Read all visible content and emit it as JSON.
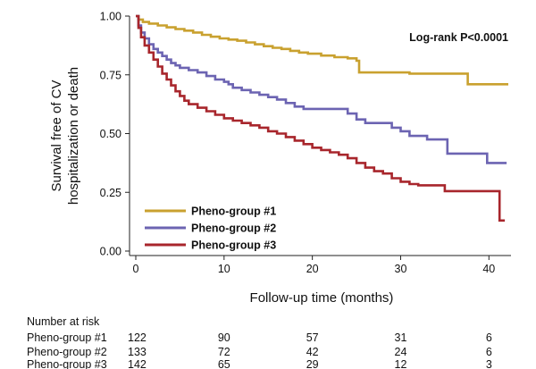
{
  "chart_data": {
    "type": "line",
    "subtype": "kaplan-meier step curves",
    "xlabel": "Follow-up time (months)",
    "ylabel_lines": [
      "Survival free of CV",
      "hospitalization or death"
    ],
    "xlim": [
      0,
      42.5
    ],
    "ylim": [
      0,
      1
    ],
    "xticks": [
      0,
      10,
      20,
      30,
      40
    ],
    "yticks": [
      0,
      0.25,
      0.5,
      0.75,
      1
    ],
    "ytick_labels": [
      "0.00",
      "0.25",
      "0.50",
      "0.75",
      "1.00"
    ],
    "annotation": "Log-rank P<0.0001",
    "legend_position": "bottom-left",
    "series": [
      {
        "name": "Pheno-group #1",
        "color": "#C9A12F",
        "points": [
          [
            0,
            1.0
          ],
          [
            0.3,
            0.985
          ],
          [
            0.8,
            0.975
          ],
          [
            1.5,
            0.968
          ],
          [
            2.5,
            0.96
          ],
          [
            3.5,
            0.952
          ],
          [
            4.5,
            0.945
          ],
          [
            5.5,
            0.938
          ],
          [
            6.5,
            0.93
          ],
          [
            7.5,
            0.92
          ],
          [
            8.5,
            0.912
          ],
          [
            9.5,
            0.905
          ],
          [
            10.5,
            0.9
          ],
          [
            11.5,
            0.895
          ],
          [
            12.5,
            0.888
          ],
          [
            13.5,
            0.88
          ],
          [
            14.5,
            0.872
          ],
          [
            15.5,
            0.865
          ],
          [
            16.5,
            0.86
          ],
          [
            17.5,
            0.852
          ],
          [
            18.5,
            0.845
          ],
          [
            19.5,
            0.84
          ],
          [
            21,
            0.832
          ],
          [
            22.5,
            0.825
          ],
          [
            24,
            0.82
          ],
          [
            25,
            0.81
          ],
          [
            25.3,
            0.76
          ],
          [
            30,
            0.76
          ],
          [
            31,
            0.755
          ],
          [
            37.5,
            0.755
          ],
          [
            37.6,
            0.71
          ],
          [
            42.2,
            0.71
          ]
        ]
      },
      {
        "name": "Pheno-group #2",
        "color": "#6C64B2",
        "points": [
          [
            0,
            1.0
          ],
          [
            0.3,
            0.96
          ],
          [
            0.6,
            0.93
          ],
          [
            1,
            0.905
          ],
          [
            1.5,
            0.88
          ],
          [
            2,
            0.86
          ],
          [
            2.5,
            0.845
          ],
          [
            3,
            0.83
          ],
          [
            3.5,
            0.815
          ],
          [
            4,
            0.8
          ],
          [
            4.5,
            0.79
          ],
          [
            5,
            0.78
          ],
          [
            6,
            0.77
          ],
          [
            7,
            0.76
          ],
          [
            8,
            0.745
          ],
          [
            9,
            0.73
          ],
          [
            10,
            0.72
          ],
          [
            10.5,
            0.71
          ],
          [
            11,
            0.695
          ],
          [
            12,
            0.685
          ],
          [
            13,
            0.675
          ],
          [
            14,
            0.665
          ],
          [
            15,
            0.655
          ],
          [
            16,
            0.645
          ],
          [
            17,
            0.63
          ],
          [
            18,
            0.615
          ],
          [
            19,
            0.605
          ],
          [
            23,
            0.605
          ],
          [
            24,
            0.585
          ],
          [
            25,
            0.56
          ],
          [
            26,
            0.545
          ],
          [
            28,
            0.545
          ],
          [
            29,
            0.525
          ],
          [
            30,
            0.51
          ],
          [
            31,
            0.49
          ],
          [
            33,
            0.475
          ],
          [
            35,
            0.475
          ],
          [
            35.3,
            0.415
          ],
          [
            39.5,
            0.415
          ],
          [
            39.8,
            0.375
          ],
          [
            42,
            0.375
          ]
        ]
      },
      {
        "name": "Pheno-group #3",
        "color": "#A8262C",
        "points": [
          [
            0,
            1.0
          ],
          [
            0.3,
            0.95
          ],
          [
            0.6,
            0.91
          ],
          [
            1,
            0.875
          ],
          [
            1.5,
            0.845
          ],
          [
            2,
            0.815
          ],
          [
            2.5,
            0.785
          ],
          [
            3,
            0.755
          ],
          [
            3.5,
            0.73
          ],
          [
            4,
            0.705
          ],
          [
            4.5,
            0.68
          ],
          [
            5,
            0.66
          ],
          [
            5.5,
            0.64
          ],
          [
            6,
            0.625
          ],
          [
            7,
            0.61
          ],
          [
            8,
            0.595
          ],
          [
            9,
            0.58
          ],
          [
            10,
            0.565
          ],
          [
            11,
            0.555
          ],
          [
            12,
            0.545
          ],
          [
            13,
            0.535
          ],
          [
            14,
            0.525
          ],
          [
            15,
            0.51
          ],
          [
            16,
            0.5
          ],
          [
            17,
            0.485
          ],
          [
            18,
            0.47
          ],
          [
            19,
            0.455
          ],
          [
            20,
            0.44
          ],
          [
            21,
            0.43
          ],
          [
            22,
            0.42
          ],
          [
            23,
            0.41
          ],
          [
            24,
            0.395
          ],
          [
            25,
            0.375
          ],
          [
            26,
            0.355
          ],
          [
            27,
            0.34
          ],
          [
            28,
            0.33
          ],
          [
            29,
            0.31
          ],
          [
            30,
            0.295
          ],
          [
            31,
            0.285
          ],
          [
            32,
            0.28
          ],
          [
            34,
            0.28
          ],
          [
            35,
            0.255
          ],
          [
            41,
            0.255
          ],
          [
            41.2,
            0.13
          ],
          [
            41.8,
            0.13
          ]
        ]
      }
    ],
    "risk_table": {
      "title": "Number at risk",
      "timepoints": [
        0,
        10,
        20,
        30,
        40
      ],
      "rows": [
        {
          "label": "Pheno-group #1",
          "values": [
            "122",
            "90",
            "57",
            "31",
            "6"
          ]
        },
        {
          "label": "Pheno-group #2",
          "values": [
            "133",
            "72",
            "42",
            "24",
            "6"
          ]
        },
        {
          "label": "Pheno-group #3",
          "values": [
            "142",
            "65",
            "29",
            "12",
            "3"
          ]
        }
      ]
    }
  }
}
